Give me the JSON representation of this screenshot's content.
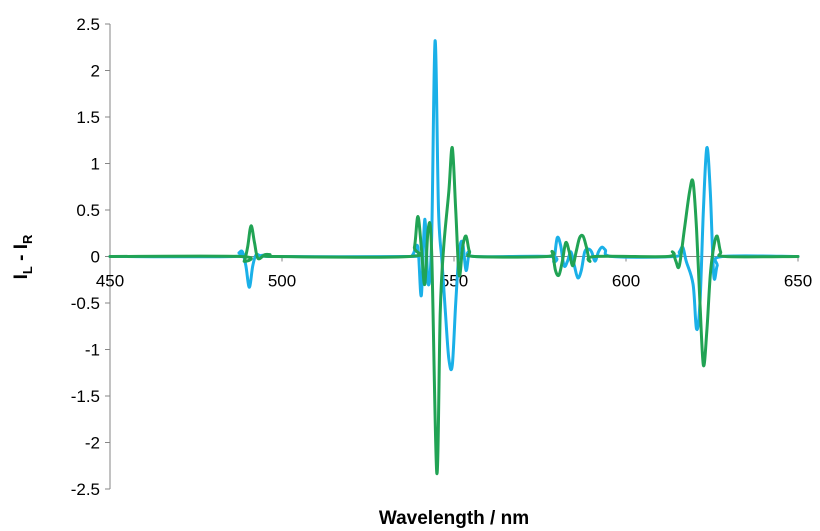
{
  "chart_data": {
    "type": "line",
    "xlabel": "Wavelength / nm",
    "ylabel_main": "I",
    "ylabel_sub1": "L",
    "ylabel_mid": " - I",
    "ylabel_sub2": "R",
    "xlim": [
      450,
      650
    ],
    "ylim": [
      -2.5,
      2.5
    ],
    "x_ticks": [
      450,
      500,
      550,
      600,
      650
    ],
    "y_ticks": [
      2.5,
      2,
      1.5,
      1,
      0.5,
      0,
      -0.5,
      -1,
      -1.5,
      -2,
      -2.5
    ],
    "grid": false,
    "legend": "none",
    "series": [
      {
        "color": "#1ab0e8",
        "points": [
          [
            450,
            0
          ],
          [
            486,
            0
          ],
          [
            487.5,
            0.04
          ],
          [
            488.5,
            0.05
          ],
          [
            489.5,
            -0.1
          ],
          [
            490.5,
            -0.33
          ],
          [
            491.5,
            -0.1
          ],
          [
            492.5,
            0.02
          ],
          [
            494,
            0
          ],
          [
            495.5,
            0.02
          ],
          [
            497,
            0
          ],
          [
            536,
            0
          ],
          [
            538,
            0.02
          ],
          [
            539.5,
            0.1
          ],
          [
            540.5,
            -0.42
          ],
          [
            541.5,
            0.4
          ],
          [
            542.5,
            -0.3
          ],
          [
            543.5,
            0.2
          ],
          [
            544.5,
            2.32
          ],
          [
            545.5,
            0.5
          ],
          [
            546.5,
            -0.05
          ],
          [
            547.5,
            -0.6
          ],
          [
            548.5,
            -1.1
          ],
          [
            549.5,
            -1.17
          ],
          [
            550.5,
            -0.5
          ],
          [
            551.5,
            0.05
          ],
          [
            552.5,
            0.15
          ],
          [
            553.5,
            -0.15
          ],
          [
            554.5,
            0.05
          ],
          [
            556,
            0
          ],
          [
            578,
            0
          ],
          [
            579,
            -0.05
          ],
          [
            580,
            0.2
          ],
          [
            581,
            0.12
          ],
          [
            582,
            -0.1
          ],
          [
            583,
            -0.05
          ],
          [
            584,
            0.05
          ],
          [
            585,
            -0.1
          ],
          [
            586,
            -0.23
          ],
          [
            587,
            -0.15
          ],
          [
            588,
            0.05
          ],
          [
            589,
            0.08
          ],
          [
            590,
            0.05
          ],
          [
            591,
            -0.05
          ],
          [
            592,
            0.05
          ],
          [
            593,
            0.1
          ],
          [
            594,
            0.07
          ],
          [
            596,
            0
          ],
          [
            614,
            0
          ],
          [
            615.5,
            0.05
          ],
          [
            616.5,
            0.1
          ],
          [
            617.5,
            -0.05
          ],
          [
            619.5,
            -0.3
          ],
          [
            620.5,
            -0.78
          ],
          [
            621.5,
            -0.5
          ],
          [
            622.5,
            0.5
          ],
          [
            623.5,
            1.17
          ],
          [
            624.5,
            0.7
          ],
          [
            625.5,
            -0.2
          ],
          [
            626.5,
            -0.1
          ],
          [
            628,
            0
          ],
          [
            650,
            0
          ]
        ]
      },
      {
        "color": "#21a354",
        "points": [
          [
            450,
            0
          ],
          [
            488,
            0
          ],
          [
            489,
            -0.05
          ],
          [
            490,
            0.1
          ],
          [
            491,
            0.33
          ],
          [
            492,
            0.15
          ],
          [
            493,
            -0.02
          ],
          [
            495,
            0.02
          ],
          [
            496.5,
            0.02
          ],
          [
            498,
            0
          ],
          [
            537,
            0
          ],
          [
            538.5,
            0.1
          ],
          [
            539.5,
            0.43
          ],
          [
            540.5,
            0.1
          ],
          [
            541.5,
            -0.3
          ],
          [
            542.5,
            0.3
          ],
          [
            543.5,
            0.05
          ],
          [
            545,
            -2.33
          ],
          [
            546,
            -0.6
          ],
          [
            547,
            0.1
          ],
          [
            548.5,
            0.7
          ],
          [
            549.5,
            1.17
          ],
          [
            550.5,
            0.5
          ],
          [
            551.5,
            -0.2
          ],
          [
            552.5,
            0.1
          ],
          [
            553.5,
            0.22
          ],
          [
            554.5,
            0.05
          ],
          [
            556,
            0
          ],
          [
            577,
            0
          ],
          [
            578.5,
            0.05
          ],
          [
            579.5,
            -0.15
          ],
          [
            580.5,
            -0.2
          ],
          [
            581.5,
            -0.05
          ],
          [
            582.5,
            0.15
          ],
          [
            583.5,
            0.05
          ],
          [
            584.5,
            -0.1
          ],
          [
            585.5,
            0.05
          ],
          [
            586.5,
            0.2
          ],
          [
            587.5,
            0.22
          ],
          [
            588.5,
            0.1
          ],
          [
            589.5,
            -0.05
          ],
          [
            591,
            0
          ],
          [
            612,
            0
          ],
          [
            613.5,
            0.05
          ],
          [
            614.5,
            -0.05
          ],
          [
            615.5,
            -0.1
          ],
          [
            617,
            0.3
          ],
          [
            618.5,
            0.7
          ],
          [
            619.5,
            0.8
          ],
          [
            620.5,
            0.3
          ],
          [
            621.5,
            -0.5
          ],
          [
            622.5,
            -1.17
          ],
          [
            623.5,
            -0.8
          ],
          [
            624.5,
            -0.2
          ],
          [
            625.5,
            0.1
          ],
          [
            626.5,
            0.22
          ],
          [
            627.5,
            0.05
          ],
          [
            629,
            0
          ],
          [
            650,
            0
          ]
        ]
      }
    ]
  }
}
